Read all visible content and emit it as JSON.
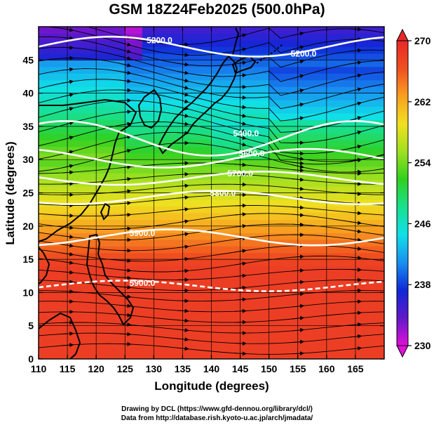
{
  "title": "GSM 18Z24Feb2025 (500.0hPa)",
  "x_axis": {
    "label": "Longitude (degrees)",
    "range": [
      110,
      170
    ],
    "ticks": [
      110,
      115,
      120,
      125,
      130,
      135,
      140,
      145,
      150,
      155,
      160,
      165
    ]
  },
  "y_axis": {
    "label": "Latitude  (degrees)",
    "range": [
      0,
      50
    ],
    "ticks": [
      0,
      5,
      10,
      15,
      20,
      25,
      30,
      35,
      40,
      45
    ]
  },
  "colorbar": {
    "range": [
      230,
      270
    ],
    "ticks": [
      230,
      238,
      246,
      254,
      262,
      270
    ],
    "palette": [
      "#e010d8",
      "#6018c8",
      "#1028d8",
      "#1890f0",
      "#10e0e8",
      "#18e090",
      "#30d020",
      "#a0e020",
      "#f0e020",
      "#f8a020",
      "#f05020",
      "#e82828"
    ]
  },
  "contours": {
    "field": "geopotential height",
    "labels": [
      {
        "text": "5200.0",
        "lon": 131,
        "lat": 47.5
      },
      {
        "text": "5200.0",
        "lon": 156,
        "lat": 45.5
      },
      {
        "text": "5400.0",
        "lon": 146,
        "lat": 33.5
      },
      {
        "text": "5600.0",
        "lon": 147,
        "lat": 30.5
      },
      {
        "text": "5700.0",
        "lon": 145,
        "lat": 27.5
      },
      {
        "text": "5800.0",
        "lon": 142,
        "lat": 24.5
      },
      {
        "text": "5900.0",
        "lon": 128,
        "lat": 18.5
      },
      {
        "text": "5900.0",
        "lon": 128,
        "lat": 11
      }
    ]
  },
  "credits": {
    "line1": "Drawing by DCL (https://www.gfd-dennou.org/library/dcl/)",
    "line2": "Data from http://database.rish.kyoto-u.ac.jp/arch/jmadata/"
  }
}
